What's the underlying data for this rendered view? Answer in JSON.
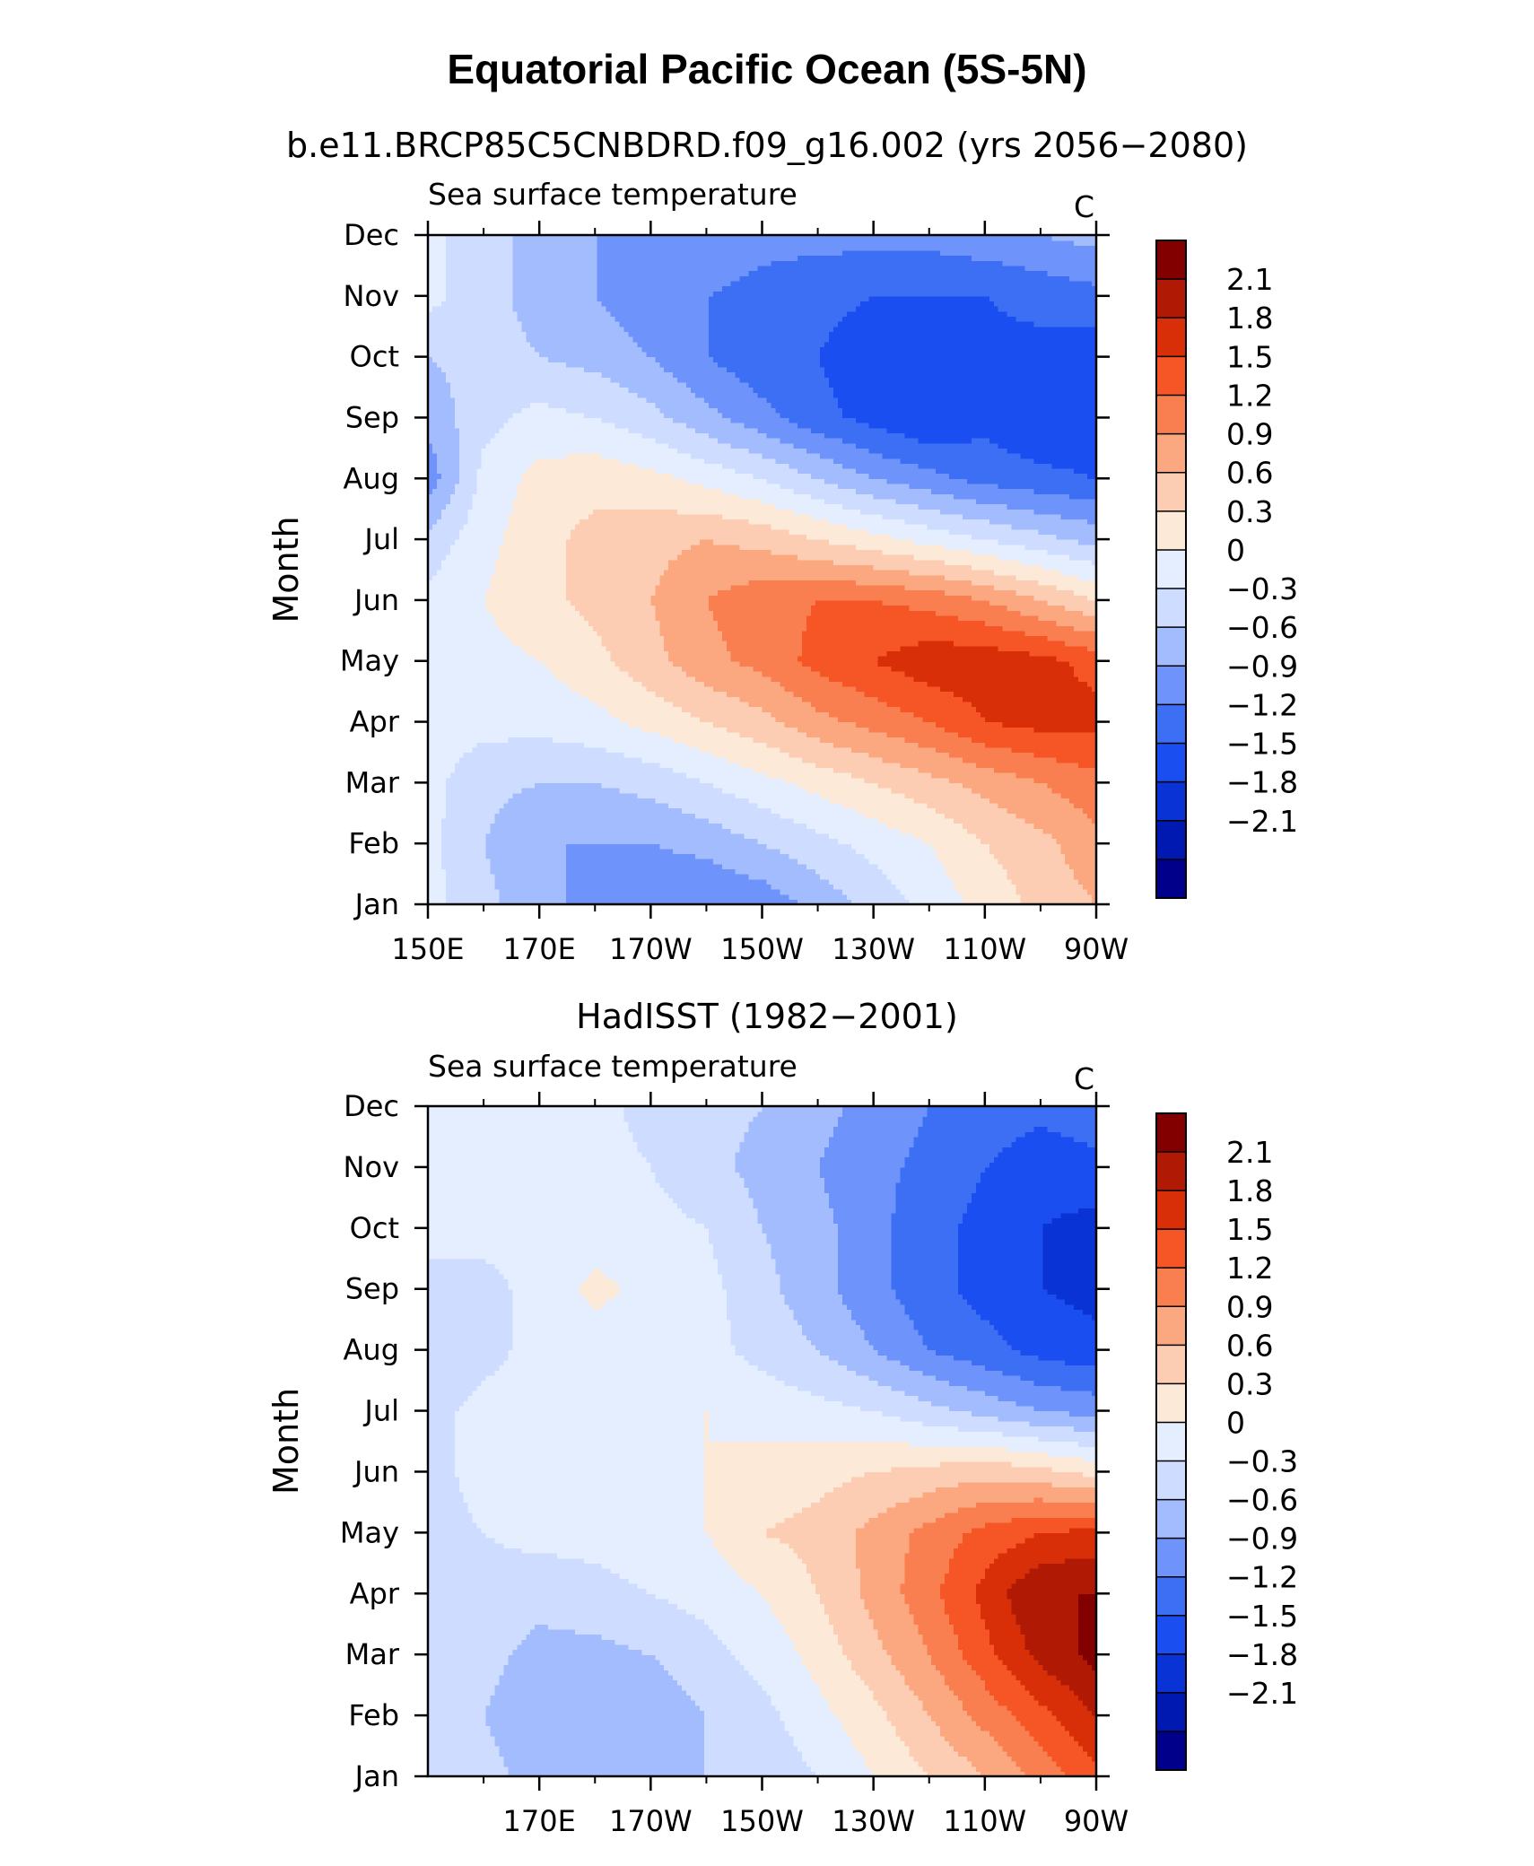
{
  "figure": {
    "title": "Equatorial Pacific Ocean (5S-5N)"
  },
  "colors": {
    "levels": [
      "#00008b",
      "#0019b0",
      "#0a33d6",
      "#1a4ef0",
      "#3d6ff5",
      "#6e94fb",
      "#a3bcfd",
      "#cddcff",
      "#e4eefe",
      "#fde9d8",
      "#fccdb2",
      "#fba780",
      "#fa7f50",
      "#f65525",
      "#d92f08",
      "#b01a05",
      "#820000"
    ]
  },
  "chart_data": [
    {
      "type": "heatmap",
      "subtitle": "b.e11.BRCP85C5CNBDRD.f09_g16.002 (yrs 2056−2080)",
      "variable_label": "Sea surface temperature",
      "units": "C",
      "ylabel": "Month",
      "xlim": [
        150,
        270
      ],
      "x_ticks": [
        150,
        170,
        190,
        210,
        230,
        250,
        270
      ],
      "x_tick_labels": [
        "150E",
        "170E",
        "170W",
        "150W",
        "130W",
        "110W",
        "90W"
      ],
      "y_tick_labels": [
        "Jan",
        "Feb",
        "Mar",
        "Apr",
        "May",
        "Jun",
        "Jul",
        "Aug",
        "Sep",
        "Oct",
        "Nov",
        "Dec"
      ],
      "colorbar_labels": [
        "2.1",
        "1.8",
        "1.5",
        "1.2",
        "0.9",
        "0.6",
        "0.3",
        "0",
        "−0.3",
        "−0.6",
        "−0.9",
        "−1.2",
        "−1.5",
        "−1.8",
        "−2.1"
      ],
      "contour_interval": 0.3,
      "x": [
        150,
        160,
        170,
        180,
        190,
        200,
        210,
        220,
        230,
        240,
        250,
        260,
        270
      ],
      "months": [
        "Jan",
        "Feb",
        "Mar",
        "Apr",
        "May",
        "Jun",
        "Jul",
        "Aug",
        "Sep",
        "Oct",
        "Nov",
        "Dec"
      ],
      "z": [
        [
          0.1,
          -0.2,
          -0.5,
          -0.7,
          -0.9,
          -0.9,
          -0.8,
          -0.5,
          -0.2,
          0.1,
          0.4,
          0.7,
          0.9
        ],
        [
          0.1,
          -0.3,
          -0.6,
          -0.6,
          -0.6,
          -0.5,
          -0.3,
          -0.1,
          0.1,
          0.3,
          0.6,
          0.8,
          1.1
        ],
        [
          0.1,
          -0.2,
          -0.3,
          -0.3,
          -0.2,
          0.0,
          0.2,
          0.4,
          0.6,
          0.8,
          1.0,
          1.2,
          1.4
        ],
        [
          0.15,
          0.1,
          0.1,
          0.2,
          0.4,
          0.6,
          0.8,
          1.1,
          1.3,
          1.5,
          1.8,
          1.9,
          1.9
        ],
        [
          0.3,
          0.2,
          0.3,
          0.5,
          0.8,
          1.1,
          1.3,
          1.6,
          1.8,
          2.0,
          2.0,
          1.9,
          1.7
        ],
        [
          0.1,
          0.3,
          0.5,
          0.7,
          0.9,
          1.2,
          1.4,
          1.5,
          1.5,
          1.4,
          1.2,
          0.9,
          0.6
        ],
        [
          -0.2,
          0.2,
          0.5,
          0.7,
          0.8,
          0.9,
          0.8,
          0.6,
          0.4,
          0.2,
          0.0,
          -0.2,
          -0.4
        ],
        [
          -0.8,
          0.1,
          0.4,
          0.5,
          0.4,
          0.2,
          0.0,
          -0.3,
          -0.6,
          -0.8,
          -1.0,
          -1.1,
          -1.2
        ],
        [
          -0.5,
          -0.1,
          0.1,
          0.0,
          -0.2,
          -0.5,
          -0.8,
          -1.1,
          -1.3,
          -1.5,
          -1.3,
          -1.5,
          -1.5
        ],
        [
          -0.3,
          -0.2,
          -0.3,
          -0.4,
          -0.6,
          -0.9,
          -1.1,
          -1.2,
          -1.4,
          -1.4,
          -1.3,
          -1.3,
          -1.4
        ],
        [
          0.1,
          -0.2,
          -0.4,
          -0.6,
          -0.8,
          -0.9,
          -1.0,
          -1.1,
          -1.2,
          -1.2,
          -1.2,
          -1.1,
          -1.0
        ],
        [
          0.1,
          -0.2,
          -0.4,
          -0.6,
          -0.7,
          -0.7,
          -0.8,
          -0.8,
          -0.8,
          -0.8,
          -0.7,
          -0.6,
          -0.5
        ]
      ]
    },
    {
      "type": "heatmap",
      "subtitle": "HadISST (1982−2001)",
      "variable_label": "Sea surface temperature",
      "units": "C",
      "ylabel": "Month",
      "xlim": [
        150,
        270
      ],
      "x_ticks": [
        170,
        190,
        210,
        230,
        250,
        270
      ],
      "x_tick_labels": [
        "170E",
        "170W",
        "150W",
        "130W",
        "110W",
        "90W"
      ],
      "y_tick_labels": [
        "Jan",
        "Feb",
        "Mar",
        "Apr",
        "May",
        "Jun",
        "Jul",
        "Aug",
        "Sep",
        "Oct",
        "Nov",
        "Dec"
      ],
      "colorbar_labels": [
        "2.1",
        "1.8",
        "1.5",
        "1.2",
        "0.9",
        "0.6",
        "0.3",
        "0",
        "−0.3",
        "−0.6",
        "−0.9",
        "−1.2",
        "−1.5",
        "−1.8",
        "−2.1"
      ],
      "contour_interval": 0.3,
      "x": [
        150,
        160,
        170,
        180,
        190,
        200,
        210,
        220,
        230,
        240,
        250,
        260,
        270
      ],
      "months": [
        "Jan",
        "Feb",
        "Mar",
        "Apr",
        "May",
        "Jun",
        "Jul",
        "Aug",
        "Sep",
        "Oct",
        "Nov",
        "Dec"
      ],
      "z": [
        [
          0.0,
          -0.2,
          -0.4,
          -0.4,
          -0.4,
          -0.3,
          -0.2,
          0.0,
          0.3,
          0.6,
          0.9,
          1.3,
          1.7
        ],
        [
          -0.1,
          -0.3,
          -0.5,
          -0.6,
          -0.5,
          -0.3,
          -0.1,
          0.2,
          0.5,
          0.9,
          1.3,
          1.7,
          2.1
        ],
        [
          -0.1,
          -0.2,
          -0.4,
          -0.4,
          -0.3,
          -0.1,
          0.1,
          0.4,
          0.8,
          1.2,
          1.7,
          2.2,
          2.5
        ],
        [
          -0.1,
          -0.1,
          -0.2,
          -0.1,
          0.0,
          0.1,
          0.3,
          0.6,
          1.0,
          1.4,
          1.9,
          2.4,
          2.4
        ],
        [
          -0.1,
          0.0,
          0.1,
          0.1,
          0.2,
          0.3,
          0.6,
          0.7,
          1.0,
          1.3,
          1.6,
          1.8,
          1.9
        ],
        [
          -0.1,
          0.1,
          0.1,
          0.1,
          0.2,
          0.3,
          0.4,
          0.5,
          0.6,
          0.7,
          0.8,
          0.7,
          0.5
        ],
        [
          -0.1,
          0.1,
          0.1,
          0.1,
          0.2,
          0.3,
          0.2,
          0.1,
          0.0,
          -0.2,
          -0.4,
          -0.6,
          -0.7
        ],
        [
          -0.3,
          -0.1,
          0.1,
          0.1,
          0.1,
          0.1,
          -0.1,
          -0.3,
          -0.6,
          -0.9,
          -1.1,
          -1.3,
          -1.4
        ],
        [
          -0.1,
          -0.1,
          0.1,
          0.4,
          0.2,
          0.1,
          -0.2,
          -0.5,
          -0.8,
          -1.1,
          -1.3,
          -1.5,
          -1.6
        ],
        [
          0.1,
          0.1,
          0.1,
          0.1,
          0.1,
          0.0,
          -0.3,
          -0.5,
          -0.8,
          -1.1,
          -1.3,
          -1.5,
          -1.6
        ],
        [
          0.1,
          0.1,
          0.1,
          0.1,
          0.0,
          -0.2,
          -0.4,
          -0.6,
          -0.8,
          -1.0,
          -1.2,
          -1.4,
          -1.3
        ],
        [
          0.1,
          0.1,
          0.1,
          0.1,
          -0.1,
          -0.2,
          -0.3,
          -0.5,
          -0.7,
          -0.9,
          -1.0,
          -1.1,
          -1.0
        ]
      ]
    }
  ]
}
